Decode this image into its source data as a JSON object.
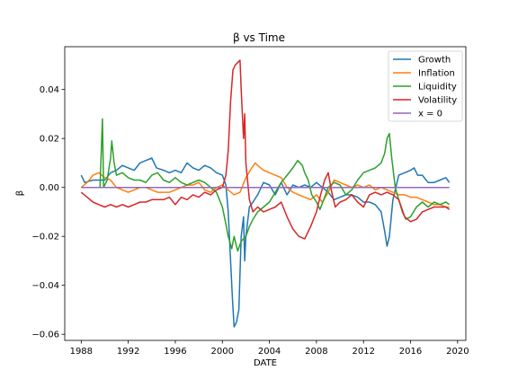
{
  "chart_data": {
    "type": "line",
    "title": "β vs Time",
    "xlabel": "DATE",
    "ylabel": "β",
    "xlim": [
      1986.6,
      2020.7
    ],
    "ylim": [
      -0.0625,
      0.0575
    ],
    "xticks": [
      1988,
      1992,
      1996,
      2000,
      2004,
      2008,
      2012,
      2016,
      2020
    ],
    "yticks": [
      -0.06,
      -0.04,
      -0.02,
      0.0,
      0.02,
      0.04
    ],
    "ytick_labels": [
      "−0.06",
      "−0.04",
      "−0.02",
      "0.00",
      "0.02",
      "0.04"
    ],
    "grid": false,
    "legend_position": "top-right",
    "series": [
      {
        "name": "Growth",
        "color": "#1f77b4",
        "points": [
          [
            1988.0,
            0.005
          ],
          [
            1988.3,
            0.002
          ],
          [
            1989.0,
            0.003
          ],
          [
            1990.0,
            0.003
          ],
          [
            1990.5,
            0.006
          ],
          [
            1991.0,
            0.007
          ],
          [
            1991.5,
            0.009
          ],
          [
            1992.0,
            0.008
          ],
          [
            1992.5,
            0.007
          ],
          [
            1993.0,
            0.01
          ],
          [
            1993.5,
            0.011
          ],
          [
            1994.0,
            0.012
          ],
          [
            1994.4,
            0.008
          ],
          [
            1995.0,
            0.007
          ],
          [
            1995.5,
            0.006
          ],
          [
            1996.0,
            0.007
          ],
          [
            1996.5,
            0.006
          ],
          [
            1997.0,
            0.01
          ],
          [
            1997.5,
            0.008
          ],
          [
            1998.0,
            0.007
          ],
          [
            1998.5,
            0.009
          ],
          [
            1999.0,
            0.008
          ],
          [
            1999.5,
            0.006
          ],
          [
            2000.0,
            0.005
          ],
          [
            2000.3,
            0.001
          ],
          [
            2000.5,
            -0.01
          ],
          [
            2000.7,
            -0.03
          ],
          [
            2000.85,
            -0.045
          ],
          [
            2001.0,
            -0.057
          ],
          [
            2001.2,
            -0.055
          ],
          [
            2001.4,
            -0.05
          ],
          [
            2001.6,
            -0.02
          ],
          [
            2001.8,
            -0.012
          ],
          [
            2001.9,
            -0.03
          ],
          [
            2002.0,
            -0.02
          ],
          [
            2002.3,
            -0.008
          ],
          [
            2002.6,
            -0.006
          ],
          [
            2003.0,
            -0.003
          ],
          [
            2003.5,
            0.002
          ],
          [
            2004.0,
            0.001
          ],
          [
            2004.5,
            -0.003
          ],
          [
            2005.0,
            0.002
          ],
          [
            2005.5,
            -0.003
          ],
          [
            2006.0,
            0.001
          ],
          [
            2006.5,
            0.0
          ],
          [
            2007.0,
            0.001
          ],
          [
            2007.5,
            0.0
          ],
          [
            2008.0,
            0.002
          ],
          [
            2008.5,
            0.0
          ],
          [
            2009.0,
            -0.002
          ],
          [
            2009.5,
            -0.005
          ],
          [
            2010.0,
            -0.004
          ],
          [
            2010.5,
            -0.003
          ],
          [
            2011.0,
            -0.003
          ],
          [
            2011.5,
            -0.004
          ],
          [
            2012.0,
            -0.006
          ],
          [
            2012.5,
            -0.006
          ],
          [
            2013.0,
            -0.007
          ],
          [
            2013.5,
            -0.01
          ],
          [
            2013.8,
            -0.018
          ],
          [
            2014.0,
            -0.024
          ],
          [
            2014.2,
            -0.02
          ],
          [
            2014.5,
            -0.005
          ],
          [
            2015.0,
            0.005
          ],
          [
            2015.5,
            0.006
          ],
          [
            2016.0,
            0.007
          ],
          [
            2016.3,
            0.008
          ],
          [
            2016.6,
            0.005
          ],
          [
            2017.0,
            0.005
          ],
          [
            2017.5,
            0.002
          ],
          [
            2018.0,
            0.002
          ],
          [
            2018.5,
            0.003
          ],
          [
            2019.0,
            0.004
          ],
          [
            2019.3,
            0.002
          ]
        ]
      },
      {
        "name": "Inflation",
        "color": "#ff7f0e",
        "points": [
          [
            1988.0,
            0.0
          ],
          [
            1988.5,
            0.002
          ],
          [
            1989.0,
            0.005
          ],
          [
            1989.5,
            0.006
          ],
          [
            1990.0,
            0.004
          ],
          [
            1990.5,
            0.003
          ],
          [
            1991.0,
            0.0
          ],
          [
            1991.5,
            -0.001
          ],
          [
            1992.0,
            -0.002
          ],
          [
            1992.5,
            -0.001
          ],
          [
            1993.0,
            0.0
          ],
          [
            1993.5,
            0.0
          ],
          [
            1994.0,
            -0.001
          ],
          [
            1994.5,
            -0.002
          ],
          [
            1995.0,
            -0.002
          ],
          [
            1995.5,
            -0.002
          ],
          [
            1996.0,
            -0.001
          ],
          [
            1996.5,
            0.0
          ],
          [
            1997.0,
            0.001
          ],
          [
            1997.5,
            0.001
          ],
          [
            1998.0,
            0.002
          ],
          [
            1998.5,
            -0.001
          ],
          [
            1999.0,
            -0.002
          ],
          [
            1999.5,
            0.0
          ],
          [
            2000.0,
            0.001
          ],
          [
            2000.5,
            -0.001
          ],
          [
            2001.0,
            -0.003
          ],
          [
            2001.5,
            -0.002
          ],
          [
            2002.0,
            0.004
          ],
          [
            2002.5,
            0.008
          ],
          [
            2002.8,
            0.01
          ],
          [
            2003.0,
            0.009
          ],
          [
            2003.5,
            0.007
          ],
          [
            2004.0,
            0.006
          ],
          [
            2004.5,
            0.005
          ],
          [
            2005.0,
            0.004
          ],
          [
            2005.5,
            0.0
          ],
          [
            2006.0,
            -0.002
          ],
          [
            2006.5,
            -0.003
          ],
          [
            2007.0,
            -0.004
          ],
          [
            2007.5,
            -0.005
          ],
          [
            2008.0,
            -0.003
          ],
          [
            2008.5,
            -0.006
          ],
          [
            2009.0,
            -0.002
          ],
          [
            2009.5,
            0.003
          ],
          [
            2010.0,
            0.002
          ],
          [
            2010.5,
            0.001
          ],
          [
            2011.0,
            0.0
          ],
          [
            2011.5,
            0.001
          ],
          [
            2012.0,
            0.0
          ],
          [
            2012.5,
            0.001
          ],
          [
            2013.0,
            -0.001
          ],
          [
            2013.5,
            0.0
          ],
          [
            2014.0,
            -0.001
          ],
          [
            2014.5,
            -0.002
          ],
          [
            2015.0,
            -0.003
          ],
          [
            2015.5,
            -0.003
          ],
          [
            2016.0,
            -0.004
          ],
          [
            2016.5,
            -0.004
          ],
          [
            2017.0,
            -0.005
          ],
          [
            2017.5,
            -0.006
          ],
          [
            2018.0,
            -0.007
          ],
          [
            2018.5,
            -0.007
          ],
          [
            2019.0,
            -0.008
          ],
          [
            2019.3,
            -0.008
          ]
        ]
      },
      {
        "name": "Liquidity",
        "color": "#2ca02c",
        "points": [
          [
            1988.0,
            0.0
          ],
          [
            1988.5,
            0.0
          ],
          [
            1989.0,
            0.0
          ],
          [
            1989.6,
            0.0
          ],
          [
            1989.8,
            0.028
          ],
          [
            1989.9,
            0.0
          ],
          [
            1990.2,
            0.003
          ],
          [
            1990.5,
            0.012
          ],
          [
            1990.6,
            0.019
          ],
          [
            1990.8,
            0.01
          ],
          [
            1991.0,
            0.005
          ],
          [
            1991.5,
            0.006
          ],
          [
            1992.0,
            0.004
          ],
          [
            1992.5,
            0.003
          ],
          [
            1993.0,
            0.003
          ],
          [
            1993.5,
            0.002
          ],
          [
            1994.0,
            0.005
          ],
          [
            1994.5,
            0.006
          ],
          [
            1995.0,
            0.003
          ],
          [
            1995.5,
            0.002
          ],
          [
            1996.0,
            0.004
          ],
          [
            1996.5,
            0.002
          ],
          [
            1997.0,
            0.001
          ],
          [
            1997.5,
            0.002
          ],
          [
            1998.0,
            0.003
          ],
          [
            1998.5,
            0.002
          ],
          [
            1999.0,
            0.0
          ],
          [
            1999.5,
            -0.002
          ],
          [
            2000.0,
            -0.008
          ],
          [
            2000.3,
            -0.015
          ],
          [
            2000.5,
            -0.02
          ],
          [
            2000.8,
            -0.025
          ],
          [
            2001.0,
            -0.02
          ],
          [
            2001.3,
            -0.026
          ],
          [
            2001.6,
            -0.022
          ],
          [
            2002.0,
            -0.02
          ],
          [
            2002.3,
            -0.016
          ],
          [
            2002.6,
            -0.013
          ],
          [
            2003.0,
            -0.01
          ],
          [
            2003.5,
            -0.008
          ],
          [
            2004.0,
            -0.006
          ],
          [
            2004.5,
            -0.002
          ],
          [
            2005.0,
            0.002
          ],
          [
            2005.5,
            0.005
          ],
          [
            2006.0,
            0.008
          ],
          [
            2006.4,
            0.011
          ],
          [
            2006.8,
            0.009
          ],
          [
            2007.0,
            0.006
          ],
          [
            2007.3,
            0.003
          ],
          [
            2007.6,
            -0.003
          ],
          [
            2008.0,
            -0.006
          ],
          [
            2008.3,
            -0.009
          ],
          [
            2008.7,
            -0.004
          ],
          [
            2009.0,
            0.0
          ],
          [
            2009.5,
            0.002
          ],
          [
            2010.0,
            0.001
          ],
          [
            2010.5,
            -0.003
          ],
          [
            2011.0,
            -0.001
          ],
          [
            2011.5,
            0.003
          ],
          [
            2012.0,
            0.006
          ],
          [
            2012.5,
            0.007
          ],
          [
            2013.0,
            0.008
          ],
          [
            2013.5,
            0.01
          ],
          [
            2013.8,
            0.014
          ],
          [
            2014.0,
            0.02
          ],
          [
            2014.2,
            0.022
          ],
          [
            2014.4,
            0.012
          ],
          [
            2014.7,
            0.0
          ],
          [
            2015.0,
            -0.005
          ],
          [
            2015.3,
            -0.01
          ],
          [
            2015.6,
            -0.013
          ],
          [
            2016.0,
            -0.012
          ],
          [
            2016.5,
            -0.008
          ],
          [
            2017.0,
            -0.006
          ],
          [
            2017.5,
            -0.008
          ],
          [
            2018.0,
            -0.006
          ],
          [
            2018.5,
            -0.007
          ],
          [
            2019.0,
            -0.006
          ],
          [
            2019.3,
            -0.007
          ]
        ]
      },
      {
        "name": "Volatility",
        "color": "#d62728",
        "points": [
          [
            1988.0,
            -0.002
          ],
          [
            1988.5,
            -0.004
          ],
          [
            1989.0,
            -0.006
          ],
          [
            1989.5,
            -0.007
          ],
          [
            1990.0,
            -0.008
          ],
          [
            1990.5,
            -0.007
          ],
          [
            1991.0,
            -0.008
          ],
          [
            1991.5,
            -0.007
          ],
          [
            1992.0,
            -0.008
          ],
          [
            1992.5,
            -0.007
          ],
          [
            1993.0,
            -0.006
          ],
          [
            1993.5,
            -0.006
          ],
          [
            1994.0,
            -0.005
          ],
          [
            1994.5,
            -0.005
          ],
          [
            1995.0,
            -0.005
          ],
          [
            1995.5,
            -0.004
          ],
          [
            1996.0,
            -0.007
          ],
          [
            1996.5,
            -0.004
          ],
          [
            1997.0,
            -0.005
          ],
          [
            1997.5,
            -0.003
          ],
          [
            1998.0,
            -0.004
          ],
          [
            1998.5,
            -0.002
          ],
          [
            1999.0,
            -0.003
          ],
          [
            1999.5,
            -0.001
          ],
          [
            2000.0,
            0.0
          ],
          [
            2000.3,
            0.005
          ],
          [
            2000.5,
            0.015
          ],
          [
            2000.7,
            0.035
          ],
          [
            2000.9,
            0.048
          ],
          [
            2001.1,
            0.05
          ],
          [
            2001.3,
            0.051
          ],
          [
            2001.5,
            0.052
          ],
          [
            2001.6,
            0.04
          ],
          [
            2001.8,
            0.02
          ],
          [
            2001.9,
            0.03
          ],
          [
            2002.0,
            0.01
          ],
          [
            2002.3,
            -0.005
          ],
          [
            2002.6,
            -0.01
          ],
          [
            2003.0,
            -0.008
          ],
          [
            2003.5,
            -0.01
          ],
          [
            2004.0,
            -0.009
          ],
          [
            2004.5,
            -0.008
          ],
          [
            2005.0,
            -0.006
          ],
          [
            2005.5,
            -0.012
          ],
          [
            2006.0,
            -0.017
          ],
          [
            2006.5,
            -0.02
          ],
          [
            2007.0,
            -0.021
          ],
          [
            2007.5,
            -0.016
          ],
          [
            2008.0,
            -0.01
          ],
          [
            2008.3,
            -0.004
          ],
          [
            2008.7,
            0.003
          ],
          [
            2009.0,
            0.006
          ],
          [
            2009.3,
            -0.002
          ],
          [
            2009.6,
            -0.008
          ],
          [
            2010.0,
            -0.006
          ],
          [
            2010.5,
            -0.005
          ],
          [
            2011.0,
            -0.003
          ],
          [
            2011.5,
            -0.006
          ],
          [
            2012.0,
            -0.008
          ],
          [
            2012.5,
            -0.003
          ],
          [
            2013.0,
            -0.002
          ],
          [
            2013.5,
            -0.003
          ],
          [
            2014.0,
            -0.002
          ],
          [
            2014.5,
            -0.003
          ],
          [
            2015.0,
            -0.005
          ],
          [
            2015.5,
            -0.012
          ],
          [
            2016.0,
            -0.014
          ],
          [
            2016.5,
            -0.013
          ],
          [
            2017.0,
            -0.01
          ],
          [
            2017.5,
            -0.009
          ],
          [
            2018.0,
            -0.008
          ],
          [
            2018.5,
            -0.008
          ],
          [
            2019.0,
            -0.008
          ],
          [
            2019.3,
            -0.009
          ]
        ]
      },
      {
        "name": "x = 0",
        "color": "#9467bd",
        "points": [
          [
            1988.0,
            0.0
          ],
          [
            2019.3,
            0.0
          ]
        ]
      }
    ]
  }
}
